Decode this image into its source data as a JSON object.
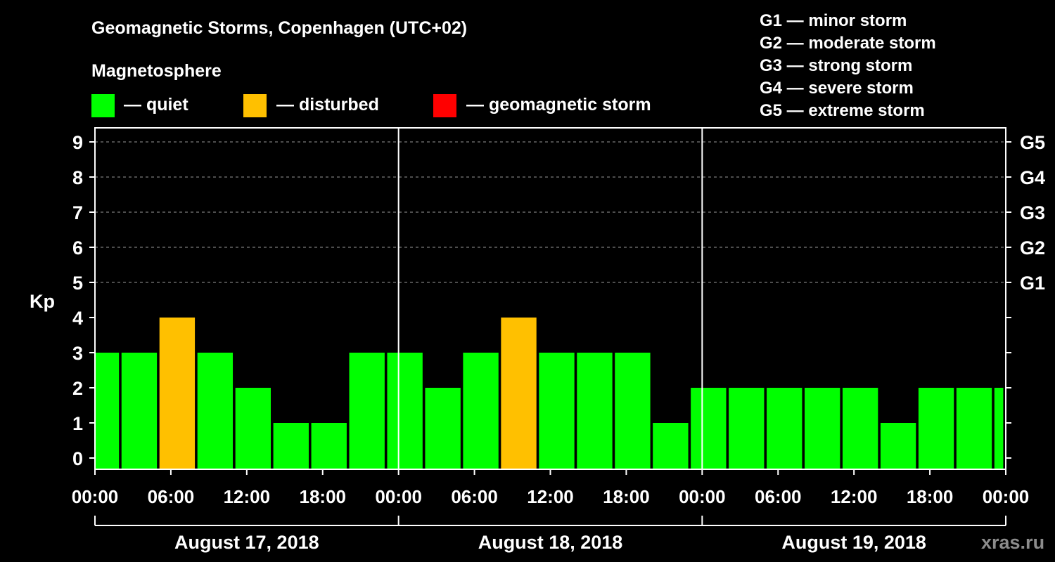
{
  "chart_data": {
    "type": "bar",
    "title": "Geomagnetic Storms, Copenhagen (UTC+02)",
    "legend_title": "Magnetosphere",
    "legend": [
      {
        "label": "— quiet",
        "color": "#00ff00"
      },
      {
        "label": "— disturbed",
        "color": "#ffc000"
      },
      {
        "label": "— geomagnetic storm",
        "color": "#ff0000"
      }
    ],
    "storm_scale": [
      "G1 — minor storm",
      "G2 — moderate storm",
      "G3 — strong storm",
      "G4 — severe storm",
      "G5 — extreme storm"
    ],
    "ylabel": "Kp",
    "ylim": [
      0,
      9
    ],
    "yticks": [
      "0",
      "1",
      "2",
      "3",
      "4",
      "5",
      "6",
      "7",
      "8",
      "9"
    ],
    "right_ticks": [
      {
        "kp": 5,
        "label": "G1"
      },
      {
        "kp": 6,
        "label": "G2"
      },
      {
        "kp": 7,
        "label": "G3"
      },
      {
        "kp": 8,
        "label": "G4"
      },
      {
        "kp": 9,
        "label": "G5"
      }
    ],
    "x_hour_range": [
      0,
      72
    ],
    "xticks": [
      {
        "hour": 0,
        "label": "00:00"
      },
      {
        "hour": 6,
        "label": "06:00"
      },
      {
        "hour": 12,
        "label": "12:00"
      },
      {
        "hour": 18,
        "label": "18:00"
      },
      {
        "hour": 24,
        "label": "00:00"
      },
      {
        "hour": 30,
        "label": "06:00"
      },
      {
        "hour": 36,
        "label": "12:00"
      },
      {
        "hour": 42,
        "label": "18:00"
      },
      {
        "hour": 48,
        "label": "00:00"
      },
      {
        "hour": 54,
        "label": "06:00"
      },
      {
        "hour": 60,
        "label": "12:00"
      },
      {
        "hour": 66,
        "label": "18:00"
      },
      {
        "hour": 72,
        "label": "00:00"
      }
    ],
    "days": [
      "August 17, 2018",
      "August 18, 2018",
      "August 19, 2018"
    ],
    "bars": [
      {
        "start": 0,
        "end": 1.9,
        "kp": 3,
        "status": "quiet"
      },
      {
        "start": 2.1,
        "end": 4.9,
        "kp": 3,
        "status": "quiet"
      },
      {
        "start": 5.1,
        "end": 7.9,
        "kp": 4,
        "status": "disturbed"
      },
      {
        "start": 8.1,
        "end": 10.9,
        "kp": 3,
        "status": "quiet"
      },
      {
        "start": 11.1,
        "end": 13.9,
        "kp": 2,
        "status": "quiet"
      },
      {
        "start": 14.1,
        "end": 16.9,
        "kp": 1,
        "status": "quiet"
      },
      {
        "start": 17.1,
        "end": 19.9,
        "kp": 1,
        "status": "quiet"
      },
      {
        "start": 20.1,
        "end": 22.9,
        "kp": 3,
        "status": "quiet"
      },
      {
        "start": 23.1,
        "end": 25.9,
        "kp": 3,
        "status": "quiet"
      },
      {
        "start": 26.1,
        "end": 28.9,
        "kp": 2,
        "status": "quiet"
      },
      {
        "start": 29.1,
        "end": 31.9,
        "kp": 3,
        "status": "quiet"
      },
      {
        "start": 32.1,
        "end": 34.9,
        "kp": 4,
        "status": "disturbed"
      },
      {
        "start": 35.1,
        "end": 37.9,
        "kp": 3,
        "status": "quiet"
      },
      {
        "start": 38.1,
        "end": 40.9,
        "kp": 3,
        "status": "quiet"
      },
      {
        "start": 41.1,
        "end": 43.9,
        "kp": 3,
        "status": "quiet"
      },
      {
        "start": 44.1,
        "end": 46.9,
        "kp": 1,
        "status": "quiet"
      },
      {
        "start": 47.1,
        "end": 49.9,
        "kp": 2,
        "status": "quiet"
      },
      {
        "start": 50.1,
        "end": 52.9,
        "kp": 2,
        "status": "quiet"
      },
      {
        "start": 53.1,
        "end": 55.9,
        "kp": 2,
        "status": "quiet"
      },
      {
        "start": 56.1,
        "end": 58.9,
        "kp": 2,
        "status": "quiet"
      },
      {
        "start": 59.1,
        "end": 61.9,
        "kp": 2,
        "status": "quiet"
      },
      {
        "start": 62.1,
        "end": 64.9,
        "kp": 1,
        "status": "quiet"
      },
      {
        "start": 65.1,
        "end": 67.9,
        "kp": 2,
        "status": "quiet"
      },
      {
        "start": 68.1,
        "end": 70.9,
        "kp": 2,
        "status": "quiet"
      },
      {
        "start": 71.1,
        "end": 71.8,
        "kp": 2,
        "status": "quiet"
      }
    ],
    "status_colors": {
      "quiet": "#00ff00",
      "disturbed": "#ffc000",
      "storm": "#ff0000"
    }
  },
  "watermark": "xras.ru"
}
